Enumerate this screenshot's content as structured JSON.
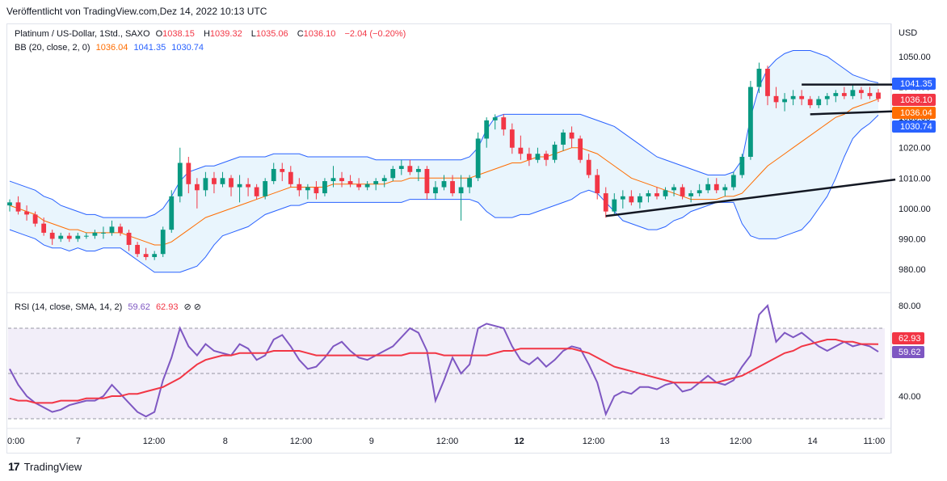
{
  "published": "Veröffentlicht von TradingView.com,Dez 14, 2022 10:13 UTC",
  "footer_brand": "TradingView",
  "main_legend": {
    "symbol": "Platinum / US-Dollar, 1Std., SAXO",
    "o_label": "O",
    "o": "1038.15",
    "h_label": "H",
    "h": "1039.32",
    "l_label": "L",
    "l": "1035.06",
    "c_label": "C",
    "c": "1036.10",
    "change": "−2.04 (−0.20%)"
  },
  "bb_legend": {
    "label": "BB (20, close, 2, 0)",
    "basis": "1036.04",
    "upper": "1041.35",
    "lower": "1030.74"
  },
  "rsi_legend": {
    "label": "RSI (14, close, SMA, 14, 2)",
    "rsi": "59.62",
    "sma": "62.93",
    "icons": "⊘ ⊘"
  },
  "colors": {
    "up": "#089981",
    "down": "#f23645",
    "basis": "#ff6d00",
    "bands": "#2962ff",
    "band_fill": "#e3f2fd",
    "rsi": "#7e57c2",
    "rsi_sma": "#f23645",
    "rsi_fill": "#ede7f6"
  },
  "price_axis": {
    "unit": "USD",
    "ticks": [
      "1050.00",
      "1040.00",
      "1030.00",
      "1020.00",
      "1010.00",
      "1000.00",
      "990.00",
      "980.00"
    ]
  },
  "price_tags": [
    {
      "label": "1041.35",
      "bg": "#2962ff"
    },
    {
      "label": "1036.10",
      "bg": "#f23645"
    },
    {
      "label": "1036.04",
      "bg": "#ff6d00"
    },
    {
      "label": "1030.74",
      "bg": "#2962ff"
    }
  ],
  "rsi_axis": {
    "ticks": [
      "80.00",
      "40.00"
    ]
  },
  "rsi_tags": [
    {
      "label": "62.93",
      "bg": "#f23645"
    },
    {
      "label": "59.62",
      "bg": "#7e57c2"
    }
  ],
  "time_axis": {
    "ticks": [
      "0:00",
      "7",
      "12:00",
      "8",
      "12:00",
      "9",
      "12:00",
      "12",
      "12:00",
      "13",
      "12:00",
      "14",
      "11:00"
    ]
  },
  "chart_data": {
    "type": "candlestick",
    "price_range": [
      975,
      1055
    ],
    "candles": [
      [
        1001,
        1003,
        999,
        1002
      ],
      [
        1002,
        1004,
        998,
        999
      ],
      [
        999,
        1001,
        996,
        998
      ],
      [
        998,
        999,
        994,
        995
      ],
      [
        995,
        997,
        991,
        992
      ],
      [
        992,
        993,
        988,
        990
      ],
      [
        990,
        992,
        989,
        991
      ],
      [
        991,
        992,
        989,
        990
      ],
      [
        990,
        992,
        989,
        991
      ],
      [
        991,
        992,
        990,
        991
      ],
      [
        991,
        993,
        990,
        992
      ],
      [
        992,
        994,
        990,
        992
      ],
      [
        992,
        996,
        991,
        994
      ],
      [
        994,
        995,
        991,
        992
      ],
      [
        992,
        993,
        986,
        988
      ],
      [
        988,
        989,
        984,
        985
      ],
      [
        985,
        987,
        983,
        984
      ],
      [
        984,
        986,
        983,
        985
      ],
      [
        985,
        994,
        984,
        993
      ],
      [
        993,
        1006,
        992,
        1004
      ],
      [
        1004,
        1020,
        1002,
        1015
      ],
      [
        1015,
        1017,
        1005,
        1008
      ],
      [
        1008,
        1010,
        1000,
        1006
      ],
      [
        1006,
        1012,
        1004,
        1010
      ],
      [
        1010,
        1012,
        1005,
        1008
      ],
      [
        1008,
        1012,
        1007,
        1010
      ],
      [
        1010,
        1011,
        1004,
        1007
      ],
      [
        1007,
        1011,
        1002,
        1008
      ],
      [
        1008,
        1010,
        1004,
        1007
      ],
      [
        1007,
        1008,
        1003,
        1004
      ],
      [
        1004,
        1010,
        1003,
        1009
      ],
      [
        1009,
        1015,
        1008,
        1013
      ],
      [
        1013,
        1015,
        1009,
        1012
      ],
      [
        1012,
        1014,
        1007,
        1008
      ],
      [
        1008,
        1010,
        1004,
        1006
      ],
      [
        1006,
        1008,
        1003,
        1007
      ],
      [
        1007,
        1009,
        1003,
        1005
      ],
      [
        1005,
        1010,
        1004,
        1009
      ],
      [
        1009,
        1014,
        1007,
        1010
      ],
      [
        1010,
        1012,
        1007,
        1009
      ],
      [
        1009,
        1011,
        1007,
        1008
      ],
      [
        1008,
        1010,
        1006,
        1007
      ],
      [
        1007,
        1009,
        1006,
        1008
      ],
      [
        1008,
        1010,
        1006,
        1009
      ],
      [
        1009,
        1011,
        1007,
        1010
      ],
      [
        1010,
        1014,
        1009,
        1013
      ],
      [
        1013,
        1016,
        1011,
        1014
      ],
      [
        1014,
        1016,
        1011,
        1012
      ],
      [
        1012,
        1014,
        1009,
        1013
      ],
      [
        1013,
        1014,
        1003,
        1005
      ],
      [
        1005,
        1009,
        1003,
        1007
      ],
      [
        1007,
        1011,
        1006,
        1009
      ],
      [
        1009,
        1011,
        1004,
        1005
      ],
      [
        1005,
        1011,
        996,
        1007
      ],
      [
        1007,
        1011,
        1005,
        1010
      ],
      [
        1010,
        1025,
        1009,
        1023
      ],
      [
        1023,
        1030,
        1020,
        1029
      ],
      [
        1029,
        1031,
        1026,
        1030
      ],
      [
        1030,
        1031,
        1024,
        1026
      ],
      [
        1026,
        1028,
        1018,
        1020
      ],
      [
        1020,
        1024,
        1016,
        1018
      ],
      [
        1018,
        1020,
        1014,
        1016
      ],
      [
        1016,
        1020,
        1015,
        1018
      ],
      [
        1018,
        1019,
        1014,
        1016
      ],
      [
        1016,
        1022,
        1015,
        1021
      ],
      [
        1021,
        1026,
        1019,
        1025
      ],
      [
        1025,
        1027,
        1020,
        1023
      ],
      [
        1023,
        1024,
        1015,
        1016
      ],
      [
        1016,
        1018,
        1010,
        1011
      ],
      [
        1011,
        1013,
        1003,
        1005
      ],
      [
        1005,
        1007,
        997,
        999
      ],
      [
        999,
        1005,
        998,
        1003
      ],
      [
        1003,
        1006,
        1000,
        1004
      ],
      [
        1004,
        1006,
        1001,
        1002
      ],
      [
        1002,
        1005,
        1000,
        1004
      ],
      [
        1004,
        1006,
        1002,
        1005
      ],
      [
        1005,
        1007,
        1003,
        1004
      ],
      [
        1004,
        1007,
        1003,
        1006
      ],
      [
        1006,
        1008,
        1004,
        1007
      ],
      [
        1007,
        1008,
        1003,
        1004
      ],
      [
        1004,
        1006,
        1002,
        1005
      ],
      [
        1005,
        1008,
        1004,
        1006
      ],
      [
        1006,
        1010,
        1005,
        1008
      ],
      [
        1008,
        1010,
        1005,
        1006
      ],
      [
        1006,
        1008,
        1004,
        1007
      ],
      [
        1007,
        1012,
        1006,
        1011
      ],
      [
        1011,
        1018,
        1010,
        1017
      ],
      [
        1017,
        1042,
        1016,
        1040
      ],
      [
        1040,
        1048,
        1038,
        1046
      ],
      [
        1046,
        1047,
        1034,
        1037
      ],
      [
        1037,
        1040,
        1033,
        1035
      ],
      [
        1035,
        1038,
        1032,
        1036
      ],
      [
        1036,
        1039,
        1034,
        1037
      ],
      [
        1037,
        1039,
        1034,
        1036
      ],
      [
        1036,
        1037,
        1033,
        1034
      ],
      [
        1034,
        1037,
        1033,
        1036
      ],
      [
        1036,
        1038,
        1034,
        1037
      ],
      [
        1037,
        1039,
        1035,
        1038
      ],
      [
        1038,
        1040,
        1036,
        1037
      ],
      [
        1037,
        1041,
        1036,
        1039
      ],
      [
        1039,
        1040,
        1036,
        1038
      ],
      [
        1038,
        1040,
        1036,
        1037
      ],
      [
        1038.15,
        1039.32,
        1035.06,
        1036.1
      ]
    ],
    "bb_basis": [
      1001,
      1000,
      999,
      998,
      996,
      995,
      994,
      993,
      993,
      992,
      992,
      992,
      992,
      992,
      991,
      990,
      989,
      988,
      988,
      989,
      991,
      993,
      995,
      997,
      998,
      999,
      1000,
      1001,
      1002,
      1003,
      1004,
      1005,
      1006,
      1007,
      1007,
      1007,
      1007,
      1007,
      1008,
      1008,
      1008,
      1008,
      1008,
      1008,
      1008,
      1009,
      1009,
      1010,
      1010,
      1010,
      1010,
      1010,
      1010,
      1010,
      1010,
      1011,
      1012,
      1013,
      1014,
      1015,
      1015,
      1016,
      1017,
      1017,
      1018,
      1019,
      1020,
      1020,
      1019,
      1018,
      1016,
      1014,
      1012,
      1010,
      1009,
      1008,
      1007,
      1006,
      1005,
      1004,
      1003,
      1003,
      1003,
      1003,
      1004,
      1004,
      1005,
      1008,
      1011,
      1014,
      1016,
      1018,
      1020,
      1022,
      1024,
      1026,
      1028,
      1030,
      1031,
      1033,
      1034,
      1035,
      1036.04
    ],
    "bb_upper": [
      1009,
      1008,
      1007,
      1006,
      1004,
      1003,
      1001,
      1000,
      999,
      998,
      998,
      997,
      997,
      997,
      997,
      997,
      997,
      998,
      1000,
      1004,
      1009,
      1012,
      1013,
      1014,
      1014,
      1015,
      1016,
      1017,
      1017,
      1017,
      1017,
      1018,
      1018,
      1018,
      1018,
      1017,
      1017,
      1017,
      1017,
      1017,
      1017,
      1017,
      1017,
      1016,
      1016,
      1016,
      1016,
      1016,
      1016,
      1016,
      1016,
      1016,
      1016,
      1016,
      1017,
      1020,
      1026,
      1030,
      1031,
      1031,
      1031,
      1031,
      1031,
      1031,
      1031,
      1031,
      1031,
      1031,
      1030,
      1029,
      1028,
      1027,
      1025,
      1023,
      1021,
      1019,
      1017,
      1016,
      1015,
      1014,
      1013,
      1012,
      1011,
      1011,
      1011,
      1012,
      1016,
      1030,
      1040,
      1046,
      1049,
      1051,
      1052,
      1052,
      1052,
      1051,
      1050,
      1048,
      1046,
      1044,
      1043,
      1042,
      1041.35
    ],
    "bb_lower": [
      993,
      992,
      991,
      990,
      988,
      987,
      987,
      986,
      987,
      986,
      986,
      987,
      987,
      987,
      985,
      983,
      981,
      979,
      979,
      979,
      979,
      980,
      981,
      984,
      988,
      991,
      992,
      993,
      994,
      996,
      998,
      999,
      1000,
      1001,
      1001,
      1002,
      1002,
      1002,
      1002,
      1002,
      1002,
      1002,
      1002,
      1002,
      1002,
      1002,
      1002,
      1003,
      1003,
      1003,
      1003,
      1003,
      1003,
      1003,
      1003,
      1002,
      999,
      997,
      997,
      997,
      998,
      998,
      999,
      1000,
      1001,
      1002,
      1003,
      1005,
      1006,
      1005,
      1002,
      999,
      996,
      995,
      994,
      993,
      993,
      994,
      996,
      997,
      999,
      1000,
      1001,
      1002,
      1002,
      1002,
      995,
      991,
      990,
      990,
      990,
      991,
      992,
      993,
      996,
      1000,
      1004,
      1010,
      1017,
      1023,
      1026,
      1028,
      1030.74
    ],
    "rsi": [
      52,
      45,
      40,
      37,
      35,
      33,
      34,
      36,
      37,
      38,
      38,
      40,
      45,
      41,
      37,
      33,
      31,
      33,
      47,
      57,
      70,
      62,
      58,
      63,
      60,
      59,
      58,
      63,
      61,
      56,
      58,
      65,
      67,
      62,
      56,
      52,
      53,
      57,
      62,
      64,
      60,
      57,
      56,
      58,
      60,
      62,
      66,
      70,
      68,
      60,
      38,
      47,
      57,
      50,
      54,
      70,
      72,
      71,
      70,
      62,
      56,
      54,
      57,
      53,
      56,
      60,
      62,
      61,
      54,
      46,
      32,
      40,
      42,
      41,
      44,
      44,
      43,
      45,
      46,
      42,
      43,
      46,
      49,
      46,
      45,
      47,
      53,
      58,
      76,
      80,
      64,
      68,
      66,
      68,
      65,
      62,
      60,
      62,
      64,
      62,
      63,
      62,
      59.62
    ],
    "rsi_sma": [
      39,
      38,
      38,
      37,
      37,
      37,
      38,
      38,
      38,
      39,
      39,
      39,
      40,
      40,
      41,
      41,
      42,
      43,
      44,
      46,
      48,
      51,
      54,
      56,
      57,
      58,
      58,
      59,
      59,
      59,
      59,
      60,
      60,
      60,
      60,
      59,
      58,
      58,
      58,
      58,
      58,
      58,
      58,
      58,
      58,
      58,
      58,
      59,
      59,
      59,
      59,
      58,
      58,
      58,
      58,
      58,
      58,
      59,
      60,
      60,
      61,
      61,
      61,
      61,
      61,
      61,
      61,
      60,
      59,
      57,
      55,
      53,
      52,
      51,
      50,
      49,
      48,
      47,
      46,
      46,
      46,
      46,
      46,
      46,
      47,
      48,
      49,
      51,
      53,
      55,
      57,
      59,
      60,
      62,
      63,
      64,
      65,
      65,
      64,
      64,
      63,
      63,
      62.93
    ],
    "rsi_range": [
      25,
      85
    ],
    "rsi_levels": [
      70,
      50,
      30
    ],
    "trendlines": [
      {
        "from": [
          70,
          997.5
        ],
        "to": [
          104,
          1009.5
        ]
      },
      {
        "from": [
          93,
          1040.8
        ],
        "to": [
          104,
          1040.8
        ]
      },
      {
        "from": [
          94,
          1031
        ],
        "to": [
          104,
          1032
        ]
      }
    ]
  }
}
